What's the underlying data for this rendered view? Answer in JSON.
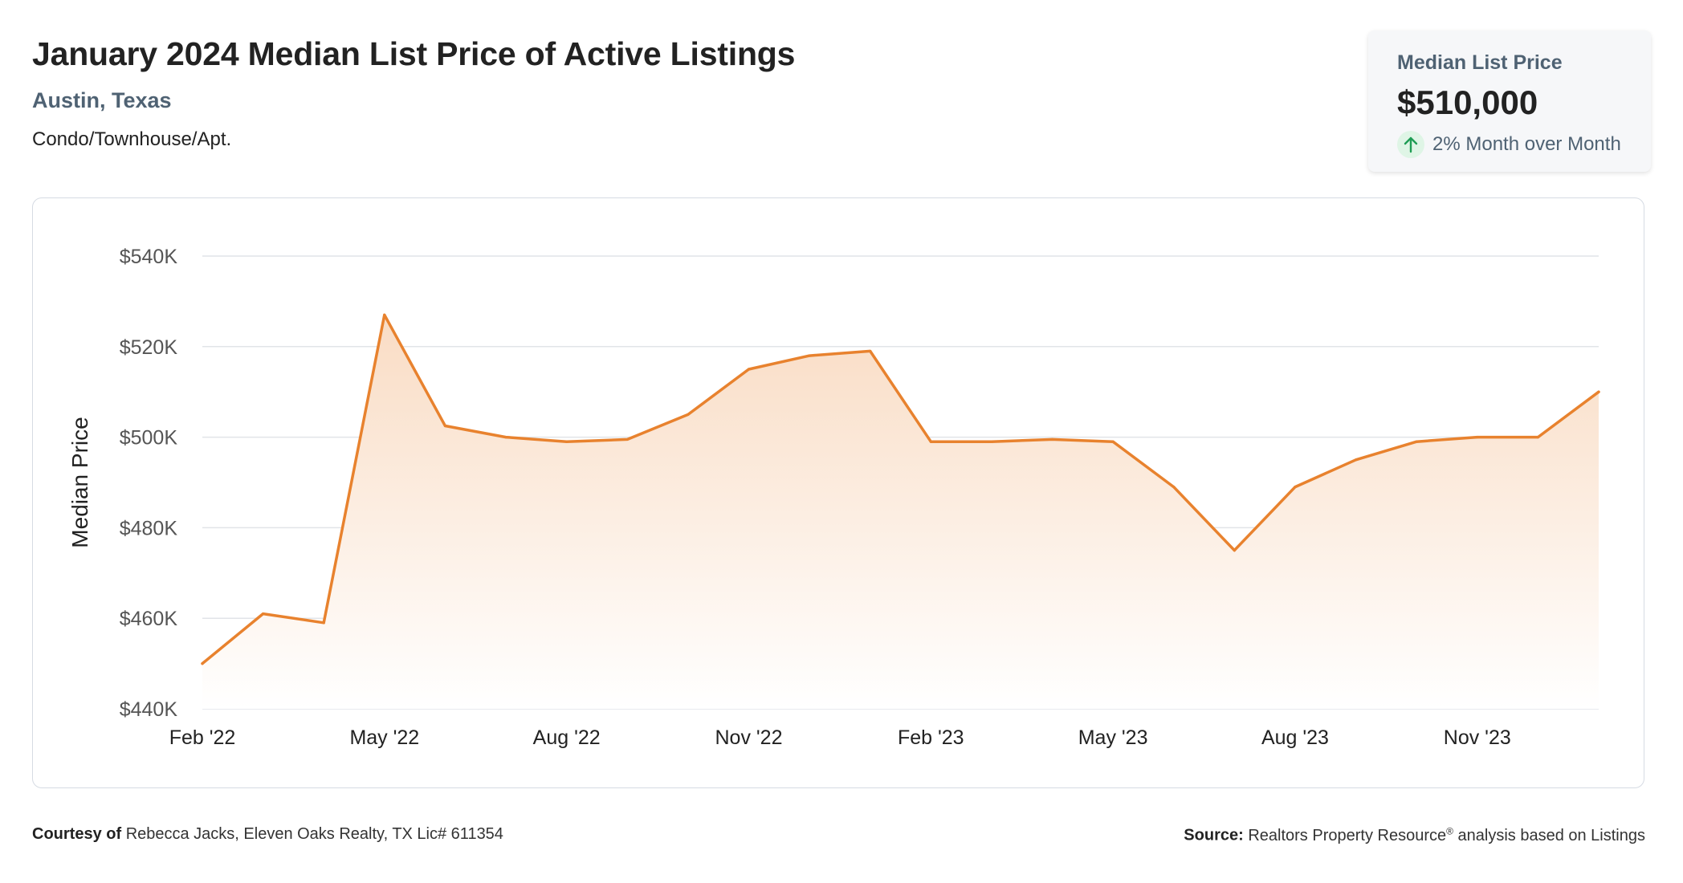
{
  "header": {
    "title": "January 2024 Median List Price of Active Listings",
    "location": "Austin, Texas",
    "property_type": "Condo/Townhouse/Apt."
  },
  "summary": {
    "label": "Median List Price",
    "value": "$510,000",
    "change": "2% Month over Month",
    "change_direction": "up",
    "change_icon": "arrow-up-icon",
    "change_color": "#1f9d55"
  },
  "colors": {
    "line": "#e8822e",
    "area_top": "#f9dcc4",
    "area_bottom": "#ffffff",
    "grid": "#e1e4e8"
  },
  "footer": {
    "courtesy_label": "Courtesy of",
    "courtesy_text": "Rebecca Jacks, Eleven Oaks Realty, TX Lic# 611354",
    "source_label": "Source:",
    "source_text_before": "Realtors Property Resource",
    "source_mark": "®",
    "source_text_after": " analysis based on Listings"
  },
  "chart_data": {
    "type": "area",
    "title": "",
    "xlabel": "",
    "ylabel": "Median Price",
    "x": [
      "Feb '22",
      "Mar '22",
      "Apr '22",
      "May '22",
      "Jun '22",
      "Jul '22",
      "Aug '22",
      "Sep '22",
      "Oct '22",
      "Nov '22",
      "Dec '22",
      "Jan '23",
      "Feb '23",
      "Mar '23",
      "Apr '23",
      "May '23",
      "Jun '23",
      "Jul '23",
      "Aug '23",
      "Sep '23",
      "Oct '23",
      "Nov '23",
      "Dec '23",
      "Jan '24"
    ],
    "values": [
      450000,
      461000,
      459000,
      527000,
      502500,
      500000,
      499000,
      499500,
      505000,
      515000,
      518000,
      519000,
      499000,
      499000,
      499500,
      499000,
      489000,
      475000,
      489000,
      495000,
      499000,
      500000,
      500000,
      510000
    ],
    "x_tick_labels": [
      "Feb '22",
      "May '22",
      "Aug '22",
      "Nov '22",
      "Feb '23",
      "May '23",
      "Aug '23",
      "Nov '23"
    ],
    "y_tick_labels": [
      "$440K",
      "$460K",
      "$480K",
      "$500K",
      "$520K",
      "$540K"
    ],
    "y_ticks": [
      440000,
      460000,
      480000,
      500000,
      520000,
      540000
    ],
    "ylim": [
      440000,
      540000
    ],
    "grid": true,
    "legend": "none"
  }
}
